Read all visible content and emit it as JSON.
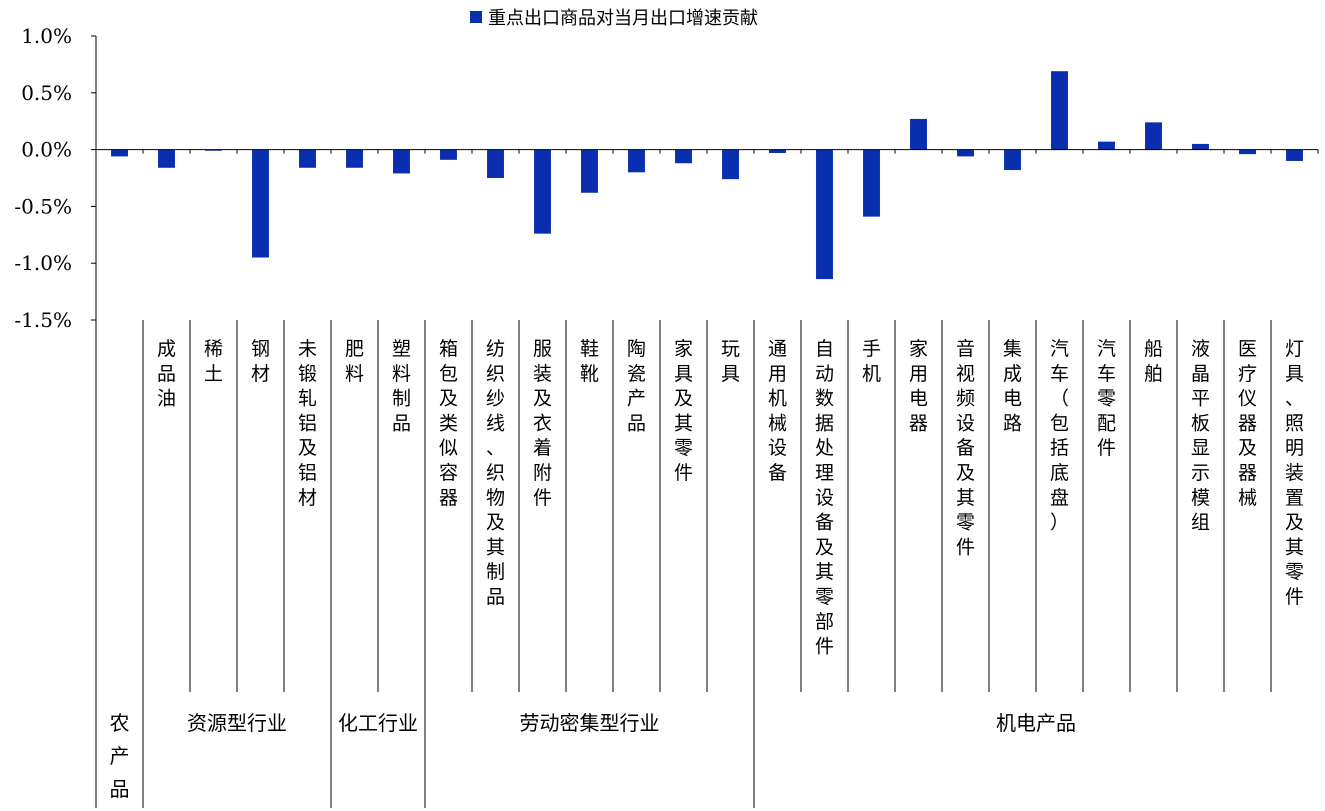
{
  "chart_data": {
    "type": "bar",
    "title": "",
    "xlabel": "",
    "ylabel": "",
    "ylim": [
      -1.5,
      1.0
    ],
    "yticks": [
      1.0,
      0.5,
      0.0,
      -0.5,
      -1.0,
      -1.5
    ],
    "ytick_labels": [
      "1.0%",
      "0.5%",
      "0.0%",
      "-0.5%",
      "-1.0%",
      "-1.5%"
    ],
    "grid": false,
    "legend_position": "top-center",
    "categories": [
      "",
      "成品油",
      "稀土",
      "钢材",
      "未锻轧铝及铝材",
      "肥料",
      "塑料制品",
      "箱包及类似容器",
      "纺织纱线、织物及其制品",
      "服装及衣着附件",
      "鞋靴",
      "陶瓷产品",
      "家具及其零件",
      "玩具",
      "通用机械设备",
      "自动数据处理设备及其零部件",
      "手机",
      "家用电器",
      "音视频设备及其零件",
      "集成电路",
      "汽车（包括底盘）",
      "汽车零配件",
      "船舶",
      "液晶平板显示模组",
      "医疗仪器及器械",
      "灯具、照明装置及其零件"
    ],
    "series": [
      {
        "name": "重点出口商品对当月出口增速贡献",
        "color": "#0a2fae",
        "values": [
          -0.06,
          -0.16,
          -0.01,
          -0.95,
          -0.16,
          -0.16,
          -0.21,
          -0.09,
          -0.25,
          -0.74,
          -0.38,
          -0.2,
          -0.12,
          -0.26,
          -0.03,
          -1.14,
          -0.59,
          0.27,
          -0.06,
          -0.18,
          0.69,
          0.07,
          0.24,
          0.05,
          -0.04,
          -0.1
        ]
      }
    ],
    "groups": [
      {
        "label": "农产品",
        "start": 0,
        "end": 0
      },
      {
        "label": "资源型行业",
        "start": 1,
        "end": 4
      },
      {
        "label": "化工行业",
        "start": 5,
        "end": 6
      },
      {
        "label": "劳动密集型行业",
        "start": 7,
        "end": 13
      },
      {
        "label": "机电产品",
        "start": 14,
        "end": 25
      }
    ]
  }
}
